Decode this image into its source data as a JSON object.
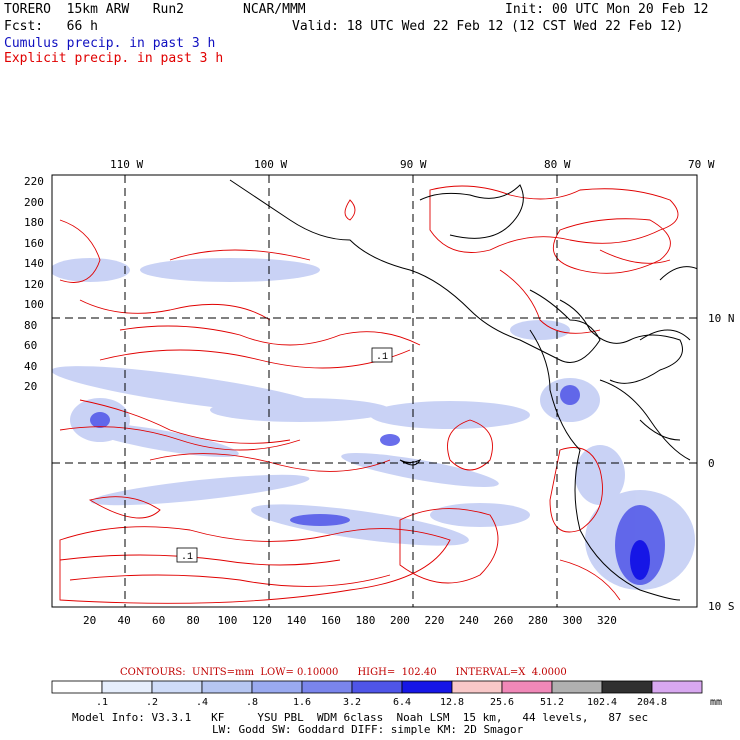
{
  "header": {
    "model": "TORERO  15km ARW   Run2",
    "org": "NCAR/MMM",
    "init": "Init: 00 UTC Mon 20 Feb 12",
    "fcst": "Fcst:   66 h",
    "valid": "Valid: 18 UTC Wed 22 Feb 12 (12 CST Wed 22 Feb 12)",
    "line_cumulus": "Cumulus precip. in past 3 h",
    "line_explicit": "Explicit precip. in past 3 h"
  },
  "map": {
    "top_lon_labels": [
      "110 W",
      "100 W",
      "90 W",
      "80 W",
      "70 W"
    ],
    "right_lat_labels": [
      "10 N",
      "0",
      "10 S"
    ],
    "y_axis_ticks": [
      "220",
      "200",
      "180",
      "160",
      "140",
      "120",
      "100",
      "80",
      "60",
      "40",
      "20"
    ],
    "x_axis_ticks": [
      "20",
      "40",
      "60",
      "80",
      "100",
      "120",
      "140",
      "160",
      "180",
      "200",
      "220",
      "240",
      "260",
      "280",
      "300",
      "320"
    ],
    "inline_labels": [
      ".1",
      ".1"
    ]
  },
  "contours_line": "CONTOURS:  UNITS=mm  LOW= 0.10000      HIGH=  102.40      INTERVAL=X  4.0000",
  "colorbar": {
    "labels": [
      ".1",
      ".2",
      ".4",
      ".8",
      "1.6",
      "3.2",
      "6.4",
      "12.8",
      "25.6",
      "51.2",
      "102.4",
      "204.8"
    ],
    "units": "mm",
    "colors": [
      "#ffffff",
      "#e6eefc",
      "#cfdcf8",
      "#b6c6f2",
      "#9aaaf0",
      "#7a85ec",
      "#4f55e8",
      "#1616e6",
      "#f8c8c8",
      "#f088b8",
      "#b0b0b0",
      "#303030",
      "#d8a8f0"
    ]
  },
  "info": {
    "line1": "Model Info: V3.3.1   KF     YSU PBL  WDM 6class  Noah LSM  15 km,   44 levels,   87 sec",
    "line2": "LW: Godd SW: Goddard DIFF: simple KM: 2D Smagor"
  }
}
